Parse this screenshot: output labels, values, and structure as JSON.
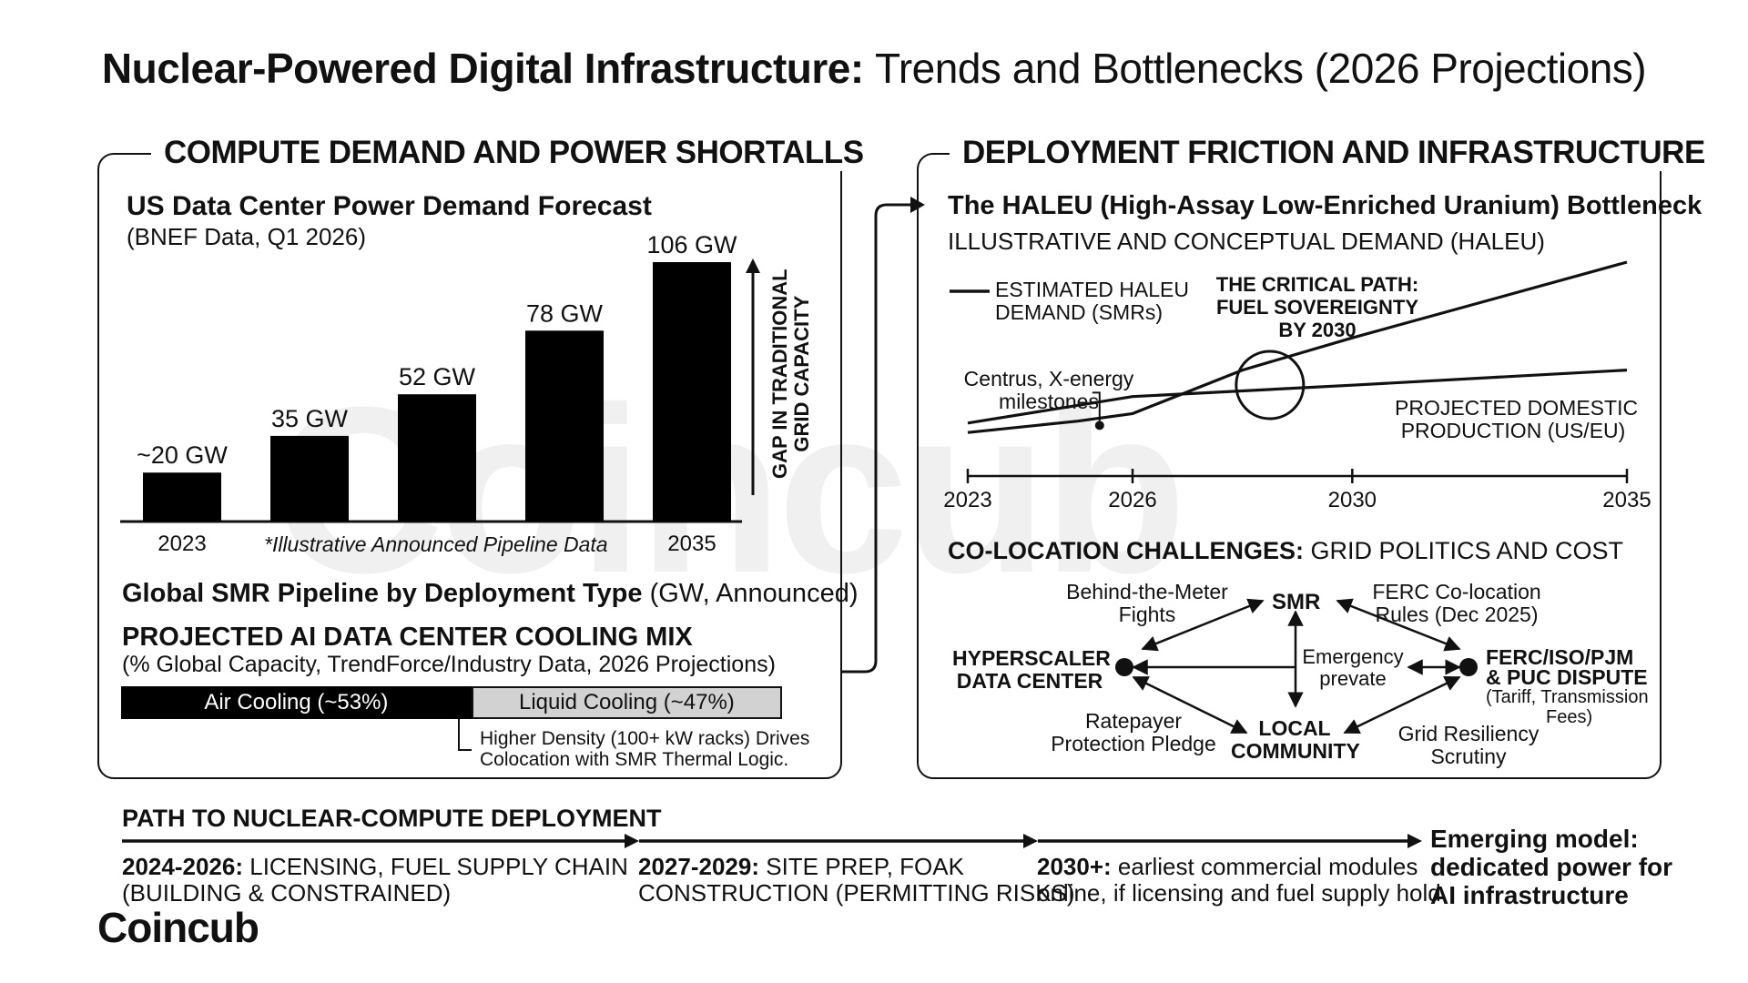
{
  "title": {
    "bold": "Nuclear-Powered Digital Infrastructure:",
    "light": "Trends and Bottlenecks (2026 Projections)"
  },
  "left_panel": {
    "heading": "COMPUTE DEMAND AND POWER SHORTALLS",
    "forecast_title": "US Data Center Power Demand Forecast",
    "forecast_source": "(BNEF Data, Q1 2026)",
    "gap_label_1": "GAP IN TRADITIONAL",
    "gap_label_2": "GRID CAPACITY",
    "footnote": "*Illustrative Announced Pipeline Data",
    "smr_title": "Global SMR Pipeline by Deployment Type",
    "smr_unit": "(GW, Announced)",
    "cooling_title": "PROJECTED AI DATA CENTER COOLING MIX",
    "cooling_source": "(% Global Capacity, TrendForce/Industry Data, 2026 Projections)",
    "cooling_note_1": "Higher Density (100+ kW racks) Drives",
    "cooling_note_2": "Colocation with SMR Thermal Logic."
  },
  "right_panel": {
    "heading": "DEPLOYMENT FRICTION AND INFRASTRUCTURE",
    "haleu_title": "The HALEU (High-Assay Low-Enriched Uranium) Bottleneck",
    "haleu_subtitle": "ILLUSTRATIVE AND CONCEPTUAL DEMAND (HALEU)",
    "legend_1": "ESTIMATED HALEU",
    "legend_2": "DEMAND (SMRs)",
    "critical_1": "THE CRITICAL PATH:",
    "critical_2": "FUEL SOVEREIGNTY",
    "critical_3": "BY 2030",
    "milestone_1": "Centrus, X-energy",
    "milestone_2": "milestones",
    "production_1": "PROJECTED DOMESTIC",
    "production_2": "PRODUCTION (US/EU)",
    "colocation_bold": "CO-LOCATION CHALLENGES:",
    "colocation_light": "GRID POLITICS AND COST",
    "node_smr": "SMR",
    "node_hyperscaler_1": "HYPERSCALER",
    "node_hyperscaler_2": "DATA CENTER",
    "node_ferc_1": "FERC/ISO/PJM",
    "node_ferc_2": "& PUC DISPUTE",
    "node_ferc_3": "(Tariff, Transmission",
    "node_ferc_4": "Fees)",
    "node_community_1": "LOCAL",
    "node_community_2": "COMMUNITY",
    "edge_btm_1": "Behind-the-Meter",
    "edge_btm_2": "Fights",
    "edge_ferc_1": "FERC Co-location",
    "edge_ferc_2": "Rules (Dec 2025)",
    "edge_emergency_1": "Emergency",
    "edge_emergency_2": "prevate",
    "edge_ratepayer_1": "Ratepayer",
    "edge_ratepayer_2": "Protection Pledge",
    "edge_grid_1": "Grid Resiliency",
    "edge_grid_2": "Scrutiny"
  },
  "timeline": {
    "heading": "PATH TO NUCLEAR-COMPUTE DEPLOYMENT",
    "step1_bold": "2024-2026:",
    "step1_text_a": "LICENSING, FUEL SUPPLY CHAIN",
    "step1_text_b": "(BUILDING & CONSTRAINED)",
    "step2_bold": "2027-2029:",
    "step2_text_a": "SITE PREP, FOAK",
    "step2_text_b": "CONSTRUCTION (PERMITTING RISKS)",
    "step3_bold": "2030+:",
    "step3_text_a": "earliest commercial modules",
    "step3_text_b": "online, if licensing and fuel supply hold",
    "outcome_1": "Emerging model:",
    "outcome_2": "dedicated power for",
    "outcome_3": "AI infrastructure"
  },
  "brand": {
    "logo": "Coincub",
    "watermark": "Coincub"
  },
  "chart_data": [
    {
      "type": "bar",
      "title": "US Data Center Power Demand Forecast",
      "categories": [
        "2023",
        "",
        "",
        "",
        "2035"
      ],
      "values": [
        20,
        35,
        52,
        78,
        106
      ],
      "labels": [
        "~20 GW",
        "35 GW",
        "52 GW",
        "78 GW",
        "106 GW"
      ],
      "unit": "GW",
      "bar_color": "#000000"
    },
    {
      "type": "line",
      "title": "ILLUSTRATIVE AND CONCEPTUAL DEMAND (HALEU)",
      "x_ticks": [
        2023,
        2026,
        2030,
        2035
      ],
      "xlim": [
        2023,
        2035
      ],
      "ylim": [
        0,
        10
      ],
      "series": [
        {
          "name": "ESTIMATED HALEU DEMAND (SMRs)",
          "x": [
            2023,
            2025,
            2026,
            2028,
            2030,
            2035
          ],
          "y": [
            1.0,
            1.6,
            2.0,
            4.3,
            6.0,
            10.0
          ]
        },
        {
          "name": "PROJECTED DOMESTIC PRODUCTION (US/EU)",
          "x": [
            2023,
            2026,
            2030,
            2035
          ],
          "y": [
            1.5,
            2.9,
            3.5,
            4.3
          ]
        }
      ],
      "milestone_x": 2025.4,
      "critical_point_x": 2028.5
    },
    {
      "type": "bar",
      "title": "PROJECTED AI DATA CENTER COOLING MIX",
      "categories": [
        "Air Cooling (~53%)",
        "Liquid Cooling (~47%)"
      ],
      "values": [
        53,
        47
      ],
      "unit": "%",
      "colors": [
        "#000000",
        "#d2d2d2"
      ]
    }
  ]
}
